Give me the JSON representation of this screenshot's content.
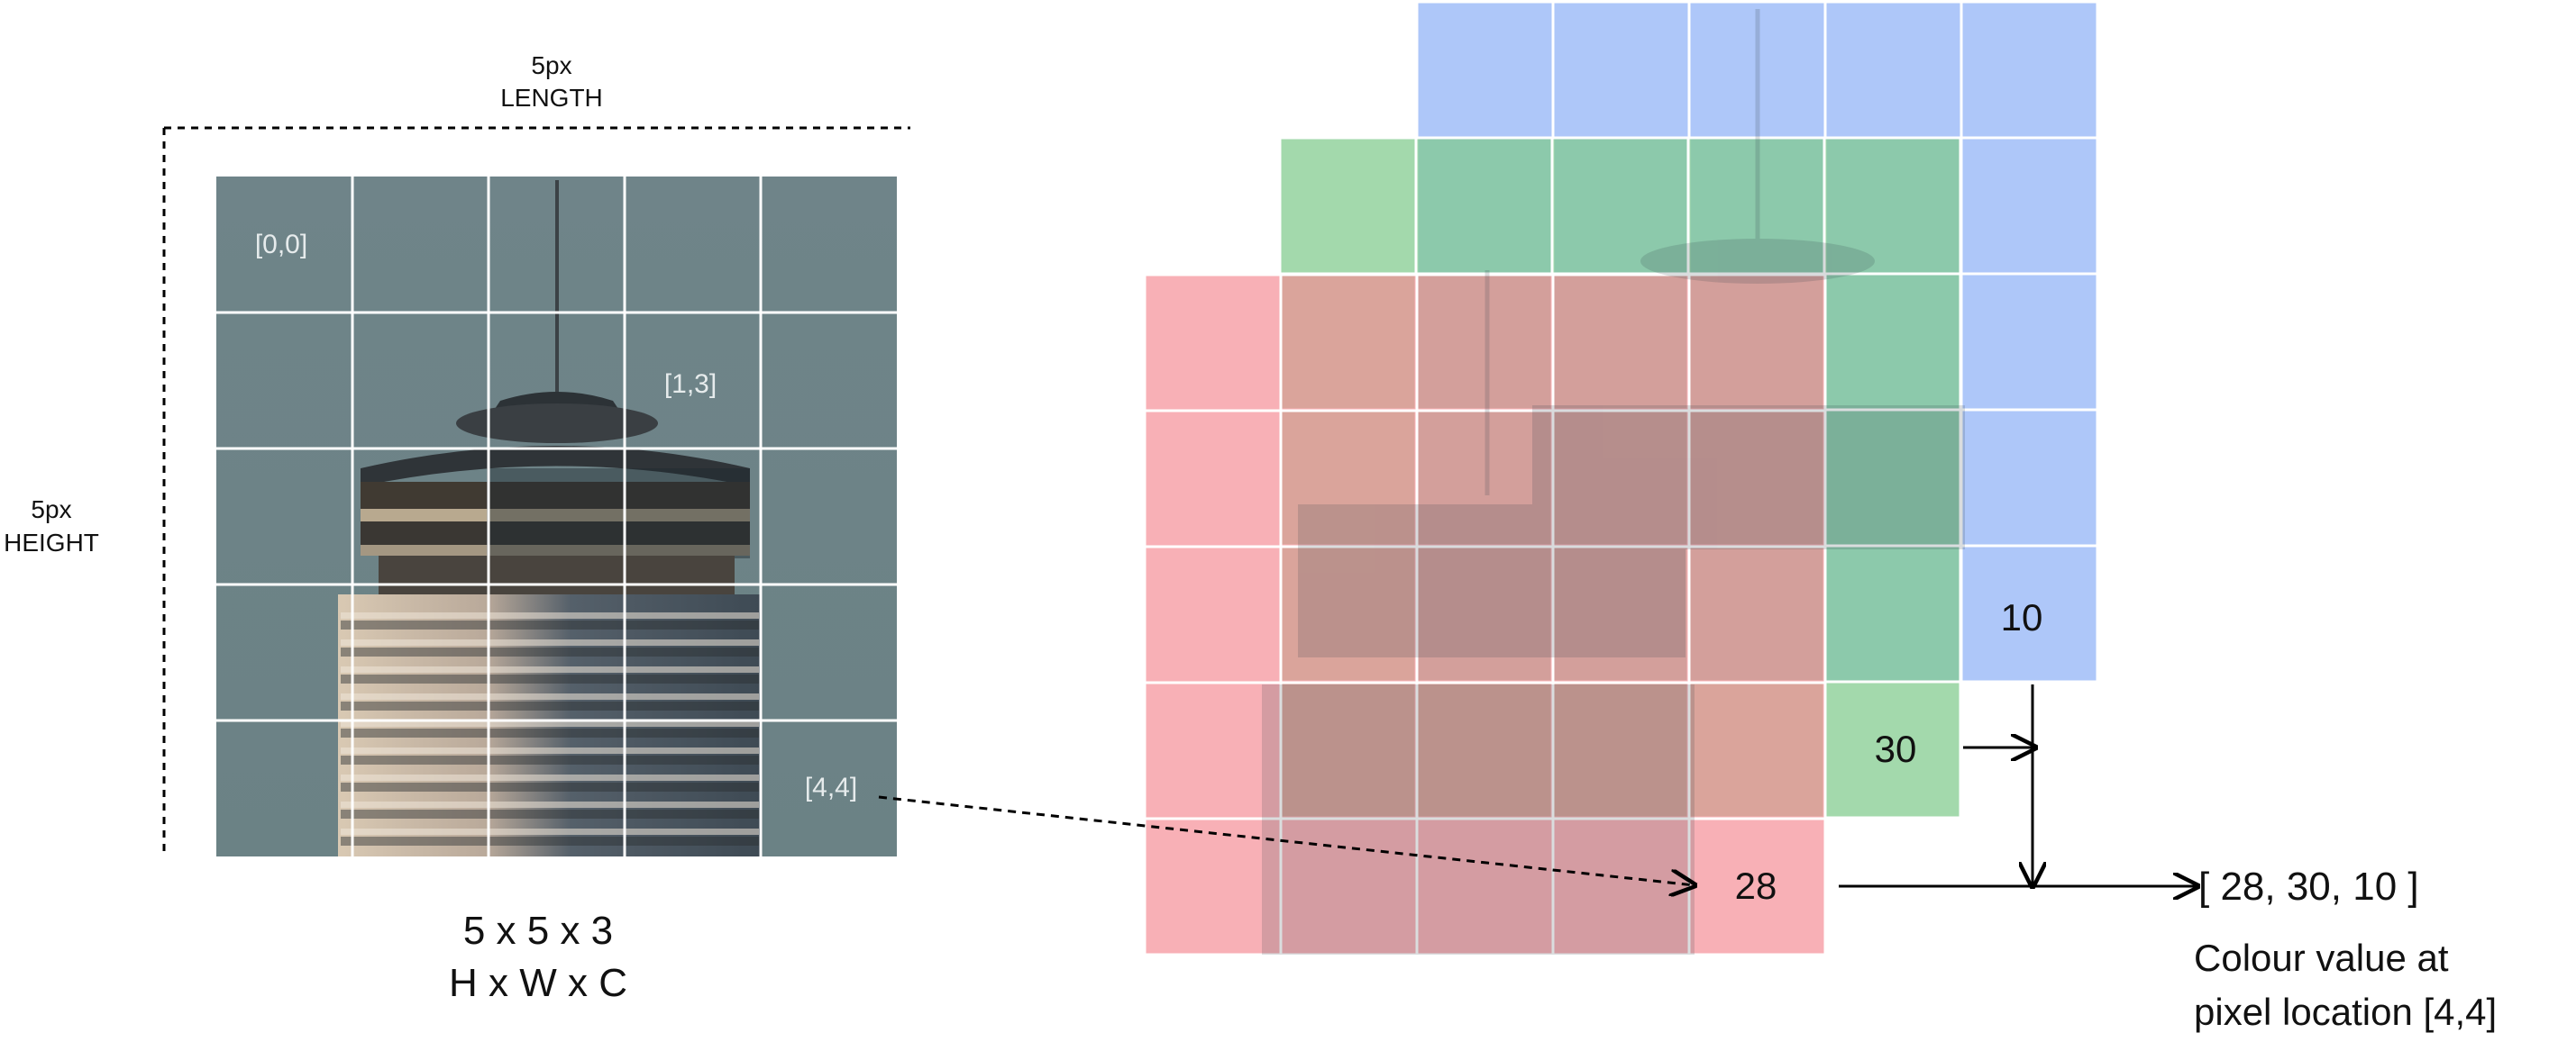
{
  "image_panel": {
    "length_value": "5px",
    "length_label": "LENGTH",
    "height_value": "5px",
    "height_label": "HEIGHT",
    "coords": {
      "origin": "[0,0]",
      "mid": "[1,3]",
      "corner": "[4,4]"
    },
    "shape": "5 x 5 x 3",
    "dims": "H x W x C"
  },
  "channels": {
    "red_value": "28",
    "green_value": "30",
    "blue_value": "10",
    "colors": {
      "red": "#f58a94",
      "green": "#7fca8c",
      "blue": "#8fb1f7"
    }
  },
  "result": {
    "vector": "[ 28, 30, 10 ]",
    "caption_line1": "Colour value at",
    "caption_line2": "pixel location [4,4]"
  }
}
